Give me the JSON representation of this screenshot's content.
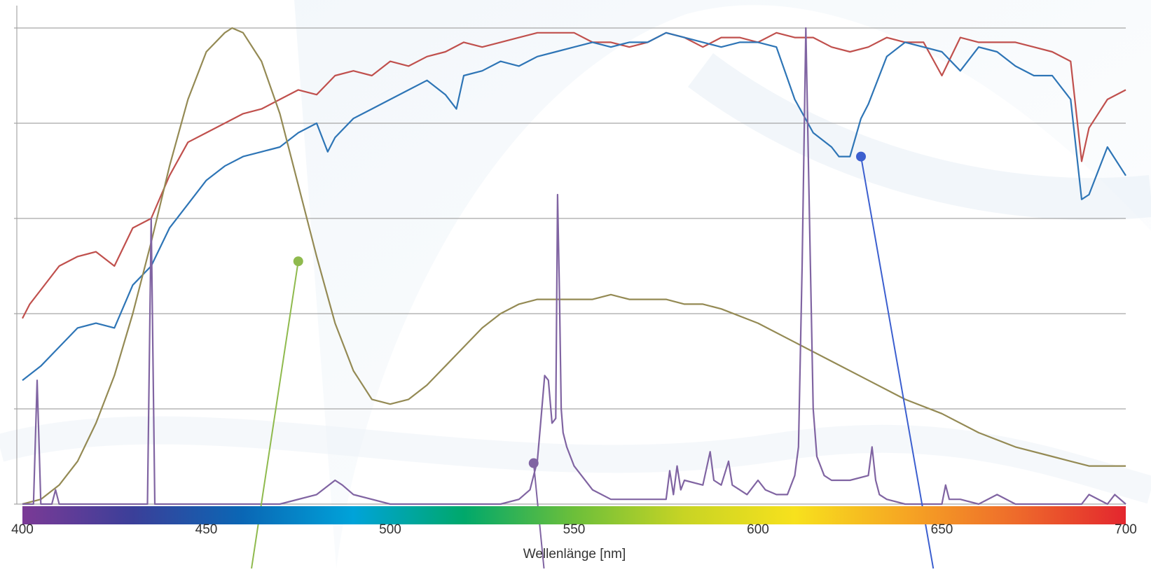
{
  "chart_data": {
    "type": "line",
    "xlabel": "Wellenlänge [nm]",
    "ylabel": "",
    "xlim": [
      400,
      700
    ],
    "ylim": [
      0,
      1
    ],
    "x_ticks": [
      "400",
      "450",
      "500",
      "550",
      "600",
      "650",
      "700"
    ],
    "grid": true,
    "spectrum_gradient": [
      "#7b3a96",
      "#3b3f99",
      "#0a67b5",
      "#00a3d9",
      "#00a86b",
      "#6cbf3a",
      "#c8d424",
      "#f7e11d",
      "#f6a623",
      "#ee6b2b",
      "#e3262e"
    ],
    "series": [
      {
        "color": "#c0504d",
        "x": [
          400,
          402,
          405,
          410,
          415,
          420,
          425,
          430,
          435,
          440,
          445,
          450,
          455,
          460,
          465,
          470,
          475,
          480,
          485,
          490,
          495,
          500,
          505,
          510,
          515,
          520,
          525,
          530,
          535,
          540,
          545,
          550,
          555,
          560,
          565,
          570,
          575,
          580,
          585,
          590,
          595,
          600,
          605,
          610,
          615,
          620,
          625,
          630,
          635,
          640,
          645,
          650,
          655,
          660,
          665,
          670,
          675,
          680,
          685,
          688,
          690,
          695,
          700
        ],
        "values": [
          0.39,
          0.42,
          0.45,
          0.5,
          0.52,
          0.53,
          0.5,
          0.58,
          0.6,
          0.69,
          0.76,
          0.78,
          0.8,
          0.82,
          0.83,
          0.85,
          0.87,
          0.86,
          0.9,
          0.91,
          0.9,
          0.93,
          0.92,
          0.94,
          0.95,
          0.97,
          0.96,
          0.97,
          0.98,
          0.99,
          0.99,
          0.99,
          0.97,
          0.97,
          0.96,
          0.97,
          0.99,
          0.98,
          0.96,
          0.98,
          0.98,
          0.97,
          0.99,
          0.98,
          0.98,
          0.96,
          0.95,
          0.96,
          0.98,
          0.97,
          0.97,
          0.9,
          0.98,
          0.97,
          0.97,
          0.97,
          0.96,
          0.95,
          0.93,
          0.72,
          0.79,
          0.85,
          0.87
        ]
      },
      {
        "color": "#2e75b6",
        "x": [
          400,
          405,
          410,
          415,
          420,
          425,
          430,
          435,
          440,
          445,
          450,
          455,
          460,
          465,
          470,
          475,
          480,
          483,
          485,
          490,
          495,
          500,
          505,
          510,
          515,
          518,
          520,
          525,
          530,
          535,
          540,
          545,
          550,
          555,
          560,
          565,
          570,
          575,
          580,
          585,
          590,
          595,
          600,
          605,
          610,
          615,
          620,
          622,
          625,
          628,
          630,
          635,
          640,
          645,
          650,
          655,
          660,
          665,
          670,
          675,
          680,
          685,
          688,
          690,
          695,
          700
        ],
        "values": [
          0.26,
          0.29,
          0.33,
          0.37,
          0.38,
          0.37,
          0.46,
          0.5,
          0.58,
          0.63,
          0.68,
          0.71,
          0.73,
          0.74,
          0.75,
          0.78,
          0.8,
          0.74,
          0.77,
          0.81,
          0.83,
          0.85,
          0.87,
          0.89,
          0.86,
          0.83,
          0.9,
          0.91,
          0.93,
          0.92,
          0.94,
          0.95,
          0.96,
          0.97,
          0.96,
          0.97,
          0.97,
          0.99,
          0.98,
          0.97,
          0.96,
          0.97,
          0.97,
          0.96,
          0.85,
          0.78,
          0.75,
          0.73,
          0.73,
          0.81,
          0.84,
          0.94,
          0.97,
          0.96,
          0.95,
          0.91,
          0.96,
          0.95,
          0.92,
          0.9,
          0.9,
          0.85,
          0.64,
          0.65,
          0.75,
          0.69
        ]
      },
      {
        "color": "#948a54",
        "x": [
          400,
          405,
          410,
          415,
          420,
          425,
          430,
          435,
          440,
          445,
          450,
          455,
          457,
          460,
          465,
          470,
          475,
          480,
          485,
          490,
          495,
          500,
          505,
          510,
          515,
          520,
          525,
          530,
          535,
          540,
          545,
          550,
          555,
          560,
          565,
          570,
          575,
          580,
          585,
          590,
          600,
          610,
          620,
          630,
          640,
          650,
          660,
          670,
          680,
          690,
          700
        ],
        "values": [
          0.0,
          0.01,
          0.04,
          0.09,
          0.17,
          0.27,
          0.4,
          0.55,
          0.71,
          0.85,
          0.95,
          0.99,
          1.0,
          0.99,
          0.93,
          0.82,
          0.67,
          0.52,
          0.38,
          0.28,
          0.22,
          0.21,
          0.22,
          0.25,
          0.29,
          0.33,
          0.37,
          0.4,
          0.42,
          0.43,
          0.43,
          0.43,
          0.43,
          0.44,
          0.43,
          0.43,
          0.43,
          0.42,
          0.42,
          0.41,
          0.38,
          0.34,
          0.3,
          0.26,
          0.22,
          0.19,
          0.15,
          0.12,
          0.1,
          0.08,
          0.08
        ]
      },
      {
        "color": "#8064a2",
        "x": [
          400,
          403,
          404,
          405,
          406,
          408,
          409,
          410,
          412,
          430,
          434,
          435,
          436,
          437,
          440,
          470,
          480,
          485,
          487,
          490,
          495,
          500,
          530,
          535,
          538,
          540,
          541,
          542,
          543,
          544,
          545,
          545.5,
          546,
          546.5,
          547,
          548,
          550,
          555,
          560,
          565,
          575,
          576,
          577,
          578,
          579,
          580,
          585,
          587,
          588,
          590,
          592,
          593,
          595,
          597,
          600,
          602,
          605,
          608,
          610,
          611,
          612,
          613,
          614,
          615,
          616,
          618,
          620,
          625,
          630,
          631,
          632,
          633,
          635,
          640,
          650,
          651,
          652,
          655,
          660,
          665,
          670,
          680,
          688,
          690,
          695,
          697,
          700
        ],
        "values": [
          0.0,
          0.0,
          0.26,
          0.0,
          0.0,
          0.0,
          0.03,
          0.0,
          0.0,
          0.0,
          0.0,
          0.6,
          0.0,
          0.0,
          0.0,
          0.0,
          0.02,
          0.05,
          0.04,
          0.02,
          0.01,
          0.0,
          0.0,
          0.01,
          0.03,
          0.09,
          0.18,
          0.27,
          0.26,
          0.17,
          0.18,
          0.65,
          0.45,
          0.2,
          0.15,
          0.12,
          0.08,
          0.03,
          0.01,
          0.01,
          0.01,
          0.07,
          0.02,
          0.08,
          0.03,
          0.05,
          0.04,
          0.11,
          0.05,
          0.04,
          0.09,
          0.04,
          0.03,
          0.02,
          0.05,
          0.03,
          0.02,
          0.02,
          0.06,
          0.12,
          0.5,
          1.0,
          0.6,
          0.2,
          0.1,
          0.06,
          0.05,
          0.05,
          0.06,
          0.12,
          0.05,
          0.02,
          0.01,
          0.0,
          0.0,
          0.04,
          0.01,
          0.01,
          0.0,
          0.02,
          0.0,
          0.0,
          0.0,
          0.02,
          0.0,
          0.02,
          0.0
        ]
      }
    ],
    "callouts": [
      {
        "color": "#8fba4d",
        "series_index": 2,
        "x": 475,
        "y": 0.51,
        "to": [
          462,
          -0.15
        ]
      },
      {
        "color": "#3c5fcf",
        "series_index": 1,
        "x": 628,
        "y": 0.73,
        "to": [
          648,
          -0.15
        ]
      },
      {
        "color": "#8064a2",
        "series_index": 3,
        "x": 539,
        "y": 0.086,
        "to": [
          542,
          -0.15
        ]
      }
    ]
  }
}
